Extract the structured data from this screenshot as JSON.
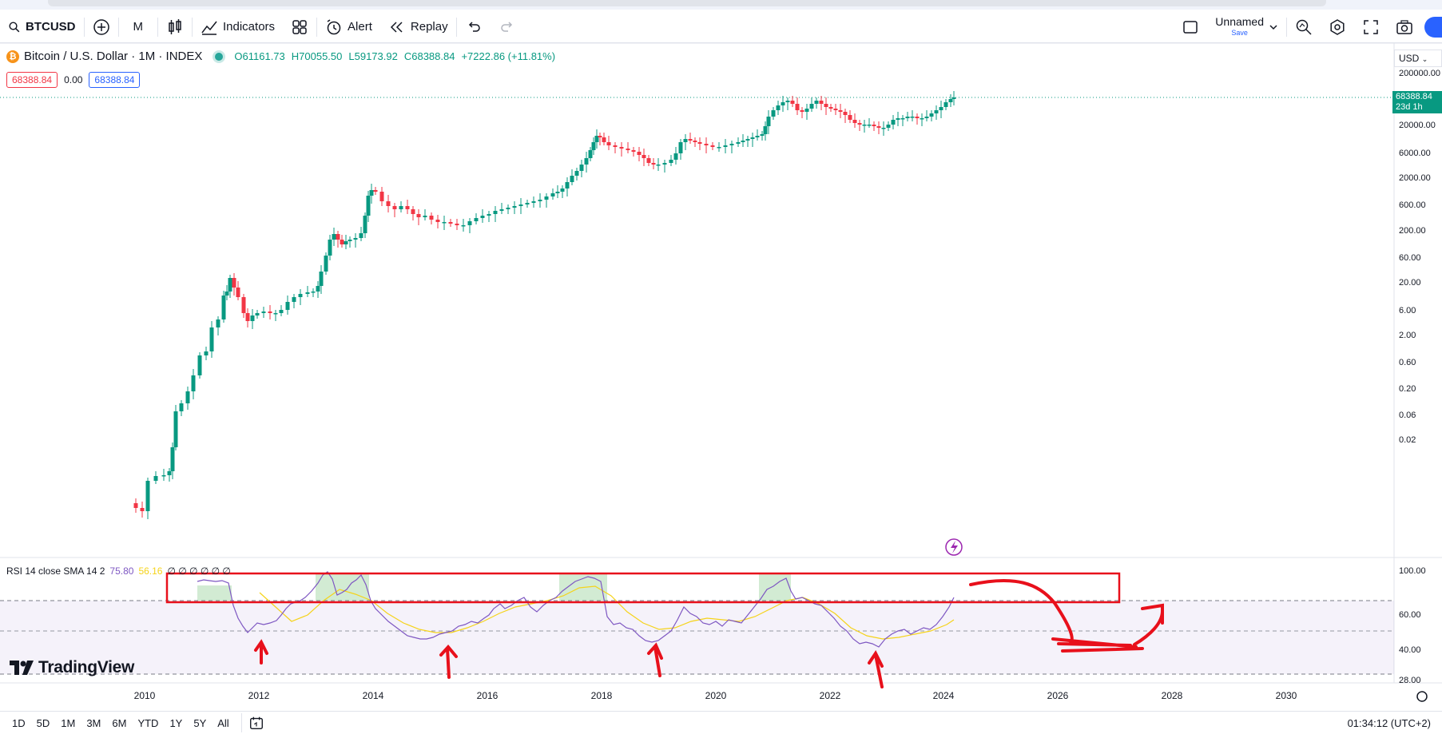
{
  "toolbar": {
    "symbol": "BTCUSD",
    "interval": "M",
    "indicators_label": "Indicators",
    "alert_label": "Alert",
    "replay_label": "Replay",
    "layout_name": "Unnamed",
    "save_label": "Save"
  },
  "legend": {
    "title": "Bitcoin / U.S. Dollar · 1M · INDEX",
    "open": "O61161.73",
    "high": "H70055.50",
    "low": "L59173.92",
    "close": "C68388.84",
    "change": "+7222.86 (+11.81%)",
    "bid": "68388.84",
    "spread": "0.00",
    "ask": "68388.84"
  },
  "price_scale": {
    "currency": "USD",
    "ticks": [
      "200000.00",
      "20000.00",
      "6000.00",
      "2000.00",
      "600.00",
      "200.00",
      "60.00",
      "20.00",
      "6.00",
      "2.00",
      "0.60",
      "0.20",
      "0.06",
      "0.02"
    ],
    "last_price": "68388.84",
    "countdown": "23d 1h"
  },
  "rsi": {
    "title": "RSI 14 close SMA 14 2",
    "rsi_value": "75.80",
    "sma_value": "56.16",
    "extra": "∅ ∅ ∅ ∅ ∅ ∅",
    "scale": [
      "100.00",
      "60.00",
      "40.00",
      "28.00"
    ]
  },
  "time_axis": {
    "labels": [
      "2010",
      "2012",
      "2014",
      "2016",
      "2018",
      "2020",
      "2022",
      "2024",
      "2026",
      "2028",
      "2030"
    ]
  },
  "ranges": [
    "1D",
    "5D",
    "1M",
    "3M",
    "6M",
    "YTD",
    "1Y",
    "5Y",
    "All"
  ],
  "clock": "01:34:12 (UTC+2)",
  "brand": "TradingView",
  "colors": {
    "up": "#089981",
    "down": "#f23645",
    "rsi": "#7e57c2",
    "sma": "#f5d31a",
    "annotation": "#e8101b"
  }
}
